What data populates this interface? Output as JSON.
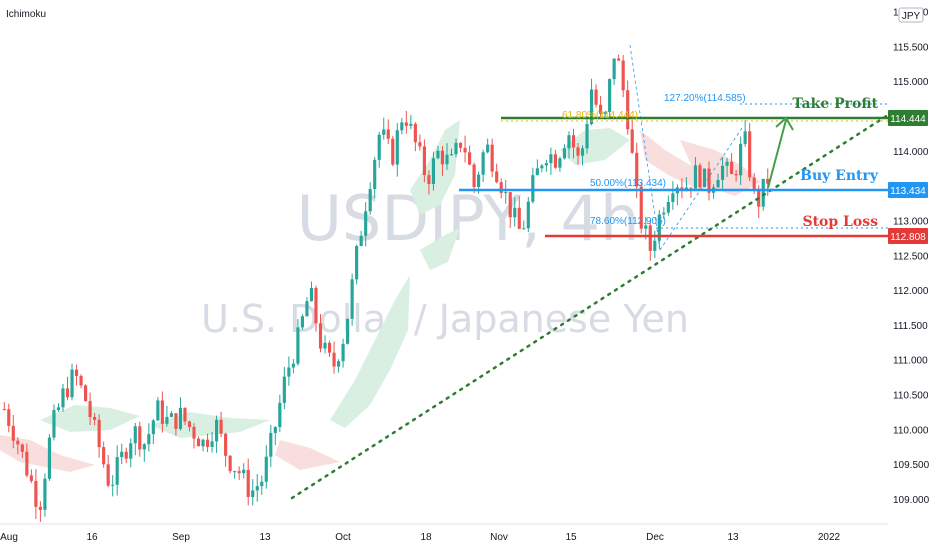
{
  "indicator_label": "Ichimoku",
  "currency_badge": "JPY",
  "watermark": {
    "symbol": "USDJPY, 4h",
    "description": "U.S. Dollar / Japanese Yen"
  },
  "colors": {
    "bull": "#26a69a",
    "bear": "#ef5350",
    "green": "#2e7d32",
    "blue": "#2196f3",
    "red": "#e53935",
    "yellow": "#e6b800",
    "cloud_green": "#d9efe2",
    "cloud_red": "#f9dede"
  },
  "annotations": {
    "take_profit": "Take Profit",
    "buy_entry": "Buy Entry",
    "stop_loss": "Stop Loss"
  },
  "fib_labels": {
    "f127": "127.20%(114.585)",
    "f61": "61.80%(114.444)",
    "f50": "50.00%(113.434)",
    "f78": "78.60%(112.905)"
  },
  "price_tags": {
    "take_profit": "114.444",
    "buy_entry": "113.434",
    "stop_loss": "112.808"
  },
  "chart_data": {
    "type": "line",
    "title": "",
    "xlabel": "",
    "ylabel": "",
    "ylim": [
      108.85,
      116.1
    ],
    "y_ticks": [
      "109.000",
      "109.500",
      "110.000",
      "110.500",
      "111.000",
      "111.500",
      "112.000",
      "112.500",
      "113.000",
      "113.500",
      "114.000",
      "114.500",
      "115.000",
      "115.500",
      "116.000"
    ],
    "x_ticks": [
      "Aug",
      "16",
      "Sep",
      "13",
      "Oct",
      "18",
      "Nov",
      "15",
      "Dec",
      "13",
      "2022"
    ],
    "series": [
      {
        "values": [
          110.3,
          109.9,
          109.4,
          108.9,
          110.0,
          110.5,
          110.8,
          110.4,
          109.8,
          109.2,
          109.6,
          110.0,
          109.8,
          110.3,
          110.1,
          110.2,
          110.0,
          109.8,
          110.1,
          109.6,
          109.4,
          109.1,
          109.3,
          110.0,
          110.8,
          111.3,
          112.0,
          111.2,
          110.9,
          111.4,
          112.5,
          113.5,
          114.3,
          113.9,
          114.6,
          114.1,
          113.6,
          114.0,
          113.8,
          114.2,
          113.5,
          114.1,
          113.7,
          113.2,
          112.8,
          113.5,
          114.0,
          113.9,
          114.3,
          113.8,
          114.9,
          114.3,
          115.5,
          114.6,
          113.1,
          112.6,
          113.2,
          113.6,
          113.5,
          113.7,
          113.5,
          113.8,
          113.6,
          114.2,
          113.2,
          113.6
        ]
      }
    ],
    "levels": {
      "take_profit": 114.444,
      "fib_127": 114.585,
      "buy_entry": 113.434,
      "stop_loss": 112.808,
      "fib_78": 112.905
    },
    "grid": false
  }
}
